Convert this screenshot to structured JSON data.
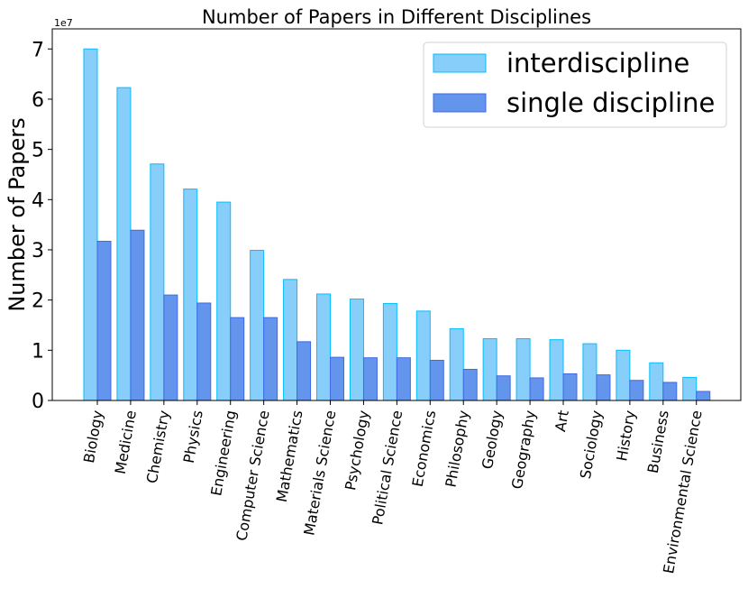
{
  "chart_data": {
    "type": "bar",
    "title": "Number of Papers in Different Disciplines",
    "xlabel": "",
    "ylabel": "Number of Papers",
    "y_multiplier": "1e7",
    "ylim": [
      0,
      7.4
    ],
    "yticks": [
      "0",
      "1",
      "2",
      "3",
      "4",
      "5",
      "6",
      "7"
    ],
    "grid": false,
    "legend_position": "top-right",
    "categories": [
      "Biology",
      "Medicine",
      "Chemistry",
      "Physics",
      "Engineering",
      "Computer Science",
      "Mathematics",
      "Materials Science",
      "Psychology",
      "Political Science",
      "Economics",
      "Philosophy",
      "Geology",
      "Geography",
      "Art",
      "Sociology",
      "History",
      "Business",
      "Environmental Science"
    ],
    "series": [
      {
        "name": "interdiscipline",
        "color": "#87CEFA",
        "edge": "#00BFFF",
        "values": [
          7.0,
          6.23,
          4.71,
          4.21,
          3.95,
          2.99,
          2.41,
          2.12,
          2.02,
          1.93,
          1.78,
          1.43,
          1.23,
          1.23,
          1.21,
          1.13,
          1.0,
          0.75,
          0.46
        ]
      },
      {
        "name": "single discipline",
        "color": "#6495ED",
        "edge": "#4169E1",
        "values": [
          3.17,
          3.39,
          2.1,
          1.94,
          1.65,
          1.65,
          1.17,
          0.86,
          0.85,
          0.85,
          0.8,
          0.62,
          0.49,
          0.45,
          0.53,
          0.51,
          0.4,
          0.36,
          0.18
        ]
      }
    ]
  }
}
